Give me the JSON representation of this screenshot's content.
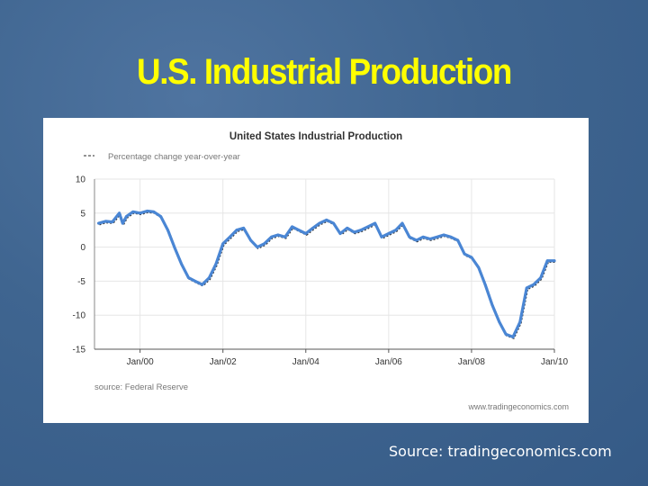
{
  "slide": {
    "title": "U.S. Industrial Production",
    "source_note": "Source: tradingeconomics.com"
  },
  "colors": {
    "background": "#3f6590",
    "title": "#ffff00",
    "line": "#4a86d4",
    "shadow": "#333333"
  },
  "chart_data": {
    "type": "line",
    "title": "United States Industrial Production",
    "legend": "Percentage change year-over-year",
    "legend_placement": "top-left",
    "source": "source: Federal Reserve",
    "watermark": "www.tradingeconomics.com",
    "xlabel": "",
    "ylabel": "",
    "ylim": [
      -15,
      10
    ],
    "yticks": [
      10,
      5,
      0,
      -5,
      -10,
      -15
    ],
    "ytick_labels": [
      "10",
      "5",
      "0",
      "-5",
      "-10",
      "-15"
    ],
    "xlim": [
      1998.9,
      2010.0
    ],
    "xticks": [
      2000,
      2002,
      2004,
      2006,
      2008,
      2010
    ],
    "xtick_labels": [
      "Jan/00",
      "Jan/02",
      "Jan/04",
      "Jan/06",
      "Jan/08",
      "Jan/10"
    ],
    "grid": true,
    "series": [
      {
        "name": "Percentage change year-over-year",
        "x": [
          1999.0,
          1999.17,
          1999.33,
          1999.5,
          1999.58,
          1999.67,
          1999.83,
          2000.0,
          2000.17,
          2000.33,
          2000.5,
          2000.67,
          2000.83,
          2001.0,
          2001.17,
          2001.33,
          2001.5,
          2001.67,
          2001.83,
          2002.0,
          2002.17,
          2002.33,
          2002.5,
          2002.67,
          2002.83,
          2003.0,
          2003.17,
          2003.33,
          2003.5,
          2003.67,
          2003.83,
          2004.0,
          2004.17,
          2004.33,
          2004.5,
          2004.67,
          2004.83,
          2005.0,
          2005.17,
          2005.33,
          2005.5,
          2005.67,
          2005.83,
          2006.0,
          2006.17,
          2006.33,
          2006.5,
          2006.67,
          2006.83,
          2007.0,
          2007.17,
          2007.33,
          2007.5,
          2007.67,
          2007.83,
          2008.0,
          2008.17,
          2008.33,
          2008.5,
          2008.67,
          2008.83,
          2009.0,
          2009.17,
          2009.33,
          2009.5,
          2009.67,
          2009.83,
          2010.0
        ],
        "values": [
          3.5,
          3.8,
          3.7,
          5.0,
          3.5,
          4.5,
          5.2,
          5.0,
          5.3,
          5.2,
          4.5,
          2.5,
          0.0,
          -2.5,
          -4.5,
          -5.0,
          -5.5,
          -4.5,
          -2.5,
          0.5,
          1.5,
          2.5,
          2.8,
          1.0,
          0.0,
          0.5,
          1.5,
          1.8,
          1.5,
          3.0,
          2.5,
          2.0,
          2.8,
          3.5,
          4.0,
          3.5,
          2.0,
          2.8,
          2.2,
          2.5,
          3.0,
          3.5,
          1.5,
          2.0,
          2.5,
          3.5,
          1.5,
          1.0,
          1.5,
          1.2,
          1.5,
          1.8,
          1.5,
          1.0,
          -1.0,
          -1.5,
          -3.0,
          -5.5,
          -8.5,
          -11.0,
          -12.8,
          -13.2,
          -11.0,
          -6.0,
          -5.5,
          -4.5,
          -2.0,
          -2.0
        ]
      }
    ]
  }
}
